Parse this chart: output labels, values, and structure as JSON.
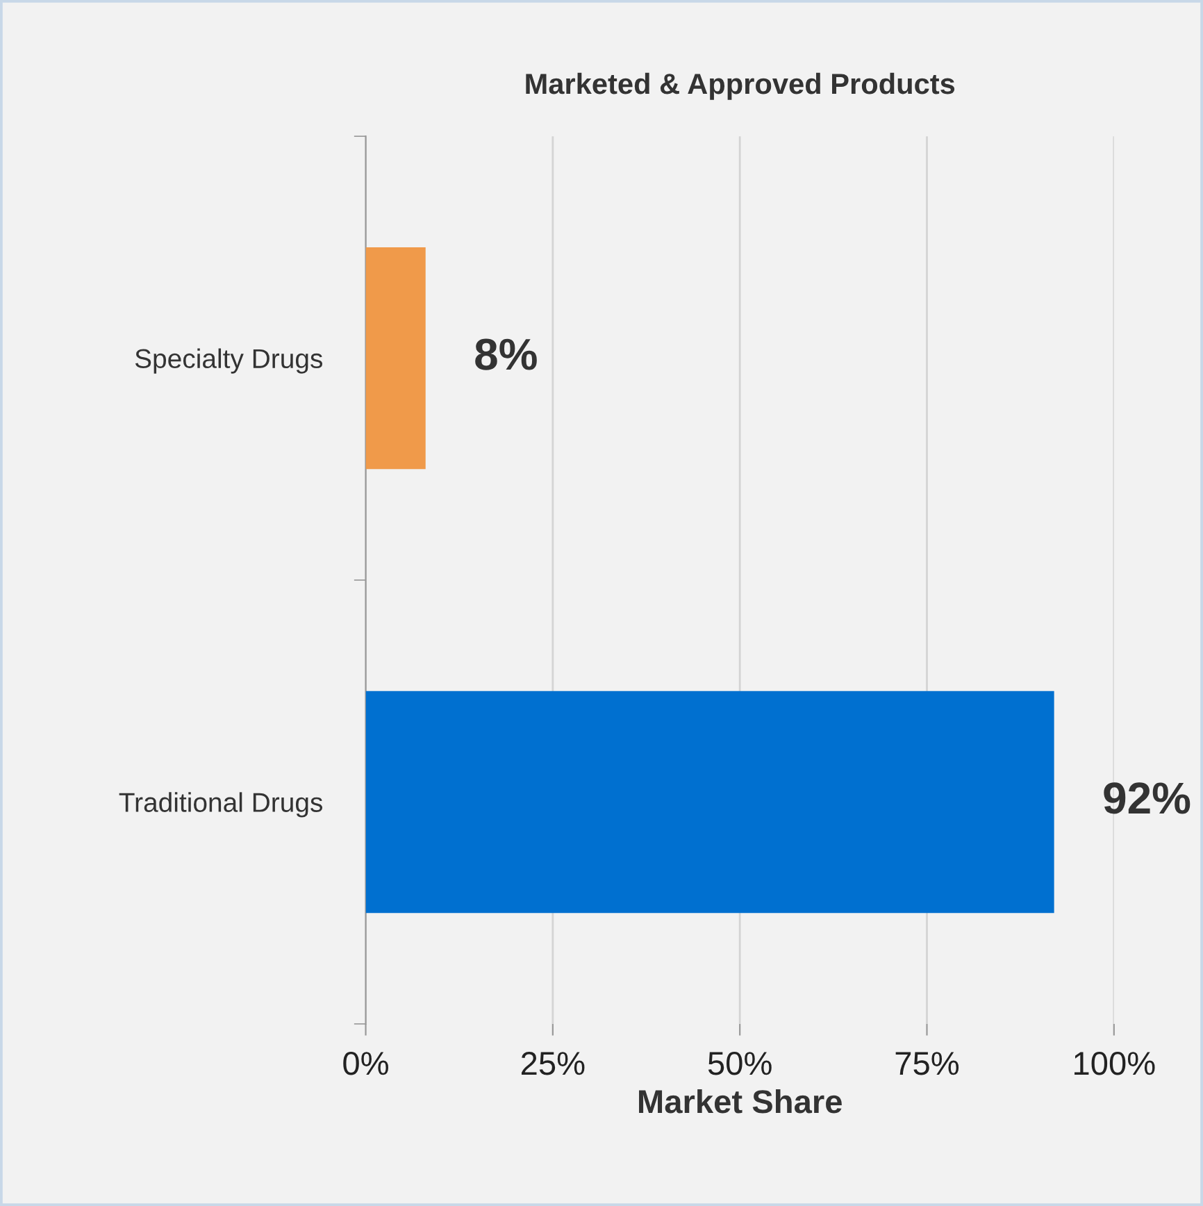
{
  "chart_data": {
    "type": "bar",
    "orientation": "horizontal",
    "title": "Marketed & Approved Products",
    "xlabel": "Market Share",
    "categories": [
      "Specialty Drugs",
      "Traditional Drugs"
    ],
    "values": [
      8,
      92
    ],
    "colors": [
      "#f09a4a",
      "#0070d0"
    ],
    "value_labels": [
      "8%",
      "92%"
    ],
    "xlim": [
      0,
      100
    ],
    "xticks": [
      {
        "value": 0,
        "label": "0%"
      },
      {
        "value": 25,
        "label": "25%"
      },
      {
        "value": 50,
        "label": "50%"
      },
      {
        "value": 75,
        "label": "75%"
      },
      {
        "value": 100,
        "label": "100%"
      }
    ],
    "grid": "x",
    "legend": false
  }
}
